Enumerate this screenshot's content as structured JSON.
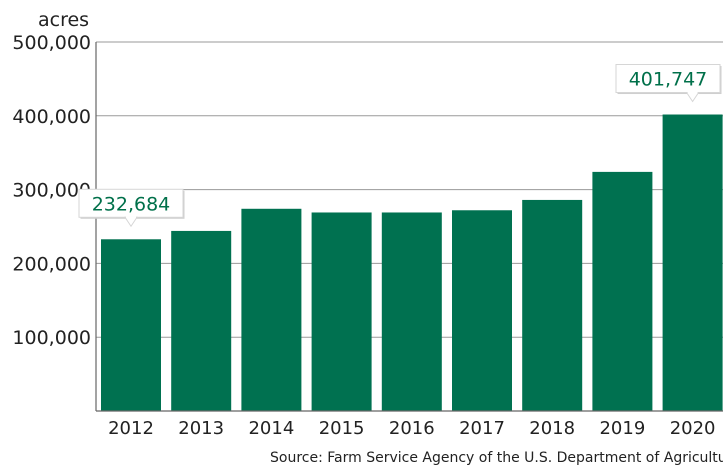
{
  "chart_data": {
    "type": "bar",
    "categories": [
      "2012",
      "2013",
      "2014",
      "2015",
      "2016",
      "2017",
      "2018",
      "2019",
      "2020"
    ],
    "values": [
      232684,
      244000,
      274000,
      269000,
      269000,
      272000,
      286000,
      324000,
      401747
    ],
    "ylabel": "acres",
    "ylim": [
      0,
      500000
    ],
    "yticks": [
      100000,
      200000,
      300000,
      400000,
      500000
    ],
    "ytick_labels": [
      "100,000",
      "200,000",
      "300,000",
      "400,000",
      "500,000"
    ],
    "grid": true,
    "bar_color": "#007150",
    "callouts": [
      {
        "category": "2012",
        "label": "232,684"
      },
      {
        "category": "2020",
        "label": "401,747"
      }
    ],
    "callout_color": "#00704a",
    "source": "Source: Farm Service Agency of the U.S. Department of Agriculture"
  }
}
